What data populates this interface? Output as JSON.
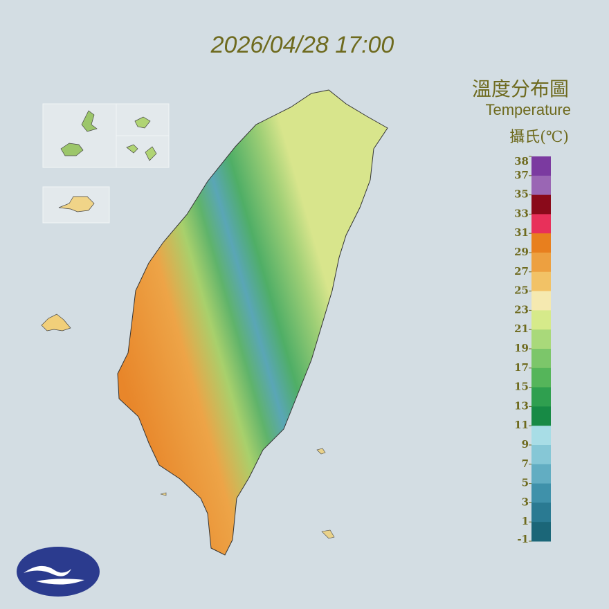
{
  "timestamp": "2026/04/28 17:00",
  "legend": {
    "title": "溫度分布圖",
    "subtitle": "Temperature",
    "unit": "攝氏(℃)",
    "ticks": [
      38,
      37,
      35,
      33,
      31,
      29,
      27,
      25,
      23,
      21,
      19,
      17,
      15,
      13,
      11,
      9,
      7,
      5,
      3,
      1,
      -1
    ],
    "colors": [
      "#7b3aa0",
      "#9a66b4",
      "#8a0a1a",
      "#e8305a",
      "#e87f1e",
      "#eda040",
      "#f2c266",
      "#f5e9b0",
      "#d6ea8a",
      "#a9d97a",
      "#7cc66a",
      "#55b55a",
      "#2f9f4f",
      "#178a45",
      "#a8dde6",
      "#86c7d6",
      "#62adc2",
      "#3f91aa",
      "#2a7a92",
      "#1b6678"
    ]
  }
}
